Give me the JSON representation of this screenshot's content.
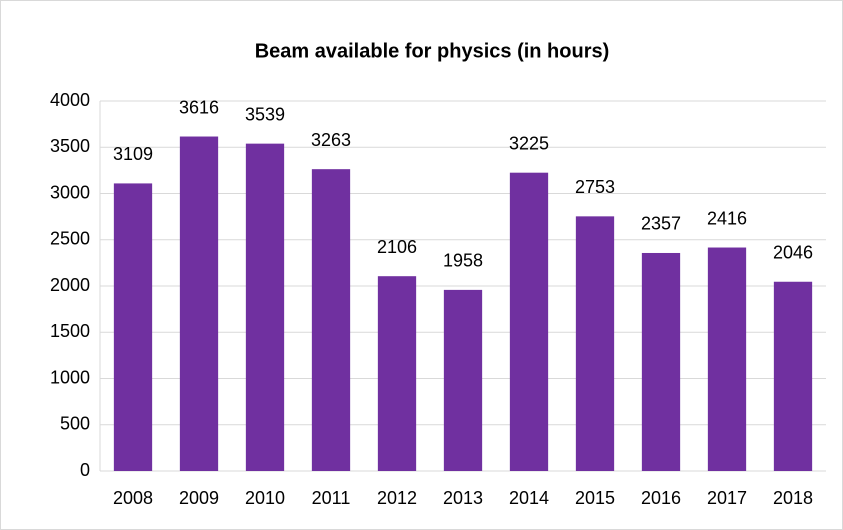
{
  "chart_data": {
    "type": "bar",
    "title": "Beam available for physics (in hours)",
    "categories": [
      "2008",
      "2009",
      "2010",
      "2011",
      "2012",
      "2013",
      "2014",
      "2015",
      "2016",
      "2017",
      "2018"
    ],
    "values": [
      3109,
      3616,
      3539,
      3263,
      2106,
      1958,
      3225,
      2753,
      2357,
      2416,
      2046
    ],
    "color": "#7030a0",
    "ylim": [
      0,
      4000
    ],
    "yticks": [
      0,
      500,
      1000,
      1500,
      2000,
      2500,
      3000,
      3500,
      4000
    ],
    "grid": true
  }
}
